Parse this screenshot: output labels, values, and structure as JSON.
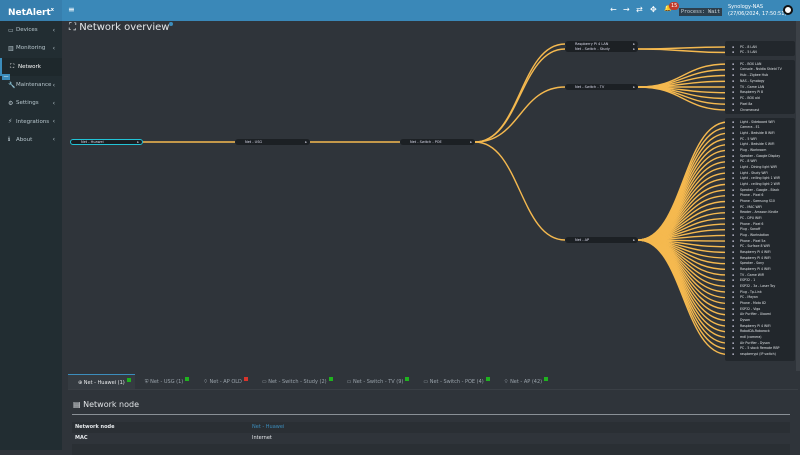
{
  "app": {
    "logo": "NetAlert",
    "logo_sup": "x",
    "menu_icon": "hamburger-icon"
  },
  "topbar": {
    "back": "←",
    "forward": "→",
    "refresh": "⇄",
    "move": "✥",
    "bell": "🔔",
    "notif_count": "15",
    "process": "Process: Wait",
    "server": "Synology-NAS",
    "datetime": "(27/06/2024, 17:50:51)"
  },
  "sidebar": [
    {
      "label": "Devices",
      "icon": "laptop-icon",
      "glyph": "▭",
      "active": false
    },
    {
      "label": "Monitoring",
      "icon": "chart-icon",
      "glyph": "▥",
      "active": false
    },
    {
      "label": "Network",
      "icon": "network-icon",
      "glyph": "⛶",
      "active": true
    },
    {
      "label": "Maintenance",
      "icon": "wrench-icon",
      "glyph": "🔧",
      "active": false
    },
    {
      "label": "Settings",
      "icon": "gear-icon",
      "glyph": "⚙",
      "active": false
    },
    {
      "label": "Integrations",
      "icon": "plug-icon",
      "glyph": "⚡",
      "active": false
    },
    {
      "label": "About",
      "icon": "info-icon",
      "glyph": "ℹ",
      "active": false
    }
  ],
  "page": {
    "title": "Network overview"
  },
  "tree": {
    "root": "Net - Huawei",
    "usg": "Net - USG",
    "poe": "Net - Switch - POE",
    "poe_children": [
      "Raspberry Pi 4 LAN",
      "Net - Switch - Study",
      "Net - Switch - TV",
      "Net - AP"
    ],
    "study_leaves": [
      "PC - 8 LAN",
      "PC - 5 LAN"
    ],
    "tv_leaves": [
      "PC - BOX LAN",
      "Console - Nvidia Shield TV",
      "Hub - Zigbee Hub",
      "NAS - Synology",
      "TV - Game LAN",
      "Raspberry Pi 8",
      "PC - BOX old",
      "Pixel 8a",
      "Chromecast"
    ],
    "ap_leaves": [
      "Light - Sideboard WiFi",
      "Camera - E1",
      "Light - Bedside B WiFi",
      "PC - 5 WiFi",
      "Light - Bedside S WiFi",
      "Plug - Workroom",
      "Speaker - Google Display",
      "PC - 8 WiFi",
      "Light - Dining light WiFi",
      "Light - Study WiFi",
      "Light - ceiling light 1 WiFi",
      "Light - ceiling light 2 WiFi",
      "Speaker - Google - Black",
      "Phone - Pixel 6",
      "Phone - Samsung S10",
      "PC - MAC WiFi",
      "Reader - Amazon Kindle",
      "PC - DPU WiFi",
      "Phone - Pixel 6",
      "Plug - Sonoff",
      "Plug - Workstation",
      "Phone - Pixel 5a",
      "PC - Surface 8 WiFi",
      "Raspberry Pi 4 WiFi",
      "Raspberry Pi 4 WiFi",
      "Speaker - Sony",
      "Raspberry Pi 4 WiFi",
      "TV - Game WiFi",
      "ESP32 - 1",
      "ESP32 - 3a - Laser Toy",
      "Plug - Tp-Link",
      "PC - Mayan",
      "Phone - Moto 82",
      "ESP32 - Vigo",
      "Air Purifier - Xiaomi",
      "Dyson",
      "Raspberry Pi 4 WiFi",
      "RobotDA-Roborock",
      "mdl (camera)",
      "Air Purifier - Dyson",
      "PC - 5 stock Remote RBP",
      "raspberrypi (IP switch)"
    ],
    "link_color": "#f5b94f",
    "selected_color": "#22c3d6"
  },
  "tabs": [
    {
      "label": "Net - Huawei (1)",
      "status": "#1fb21f",
      "icon": "globe-icon",
      "glyph": "⊕"
    },
    {
      "label": "Net - USG (1)",
      "status": "#1fb21f",
      "icon": "shield-icon",
      "glyph": "⛨"
    },
    {
      "label": "Net - AP OLD",
      "status": "#d9342b",
      "icon": "wifi-icon",
      "glyph": "⌔"
    },
    {
      "label": "Net - Switch - Study (2)",
      "status": "#1fb21f",
      "icon": "switch-icon",
      "glyph": "▭"
    },
    {
      "label": "Net - Switch - TV (9)",
      "status": "#1fb21f",
      "icon": "switch-icon",
      "glyph": "▭"
    },
    {
      "label": "Net - Switch - POE (4)",
      "status": "#1fb21f",
      "icon": "switch-icon",
      "glyph": "▭"
    },
    {
      "label": "Net - AP (42)",
      "status": "#1fb21f",
      "icon": "wifi-icon",
      "glyph": "⌔"
    }
  ],
  "node": {
    "title": "Network node",
    "rows": [
      {
        "k": "Network node",
        "v": "Net - Huawei"
      },
      {
        "k": "MAC",
        "v": "Internet"
      }
    ]
  }
}
